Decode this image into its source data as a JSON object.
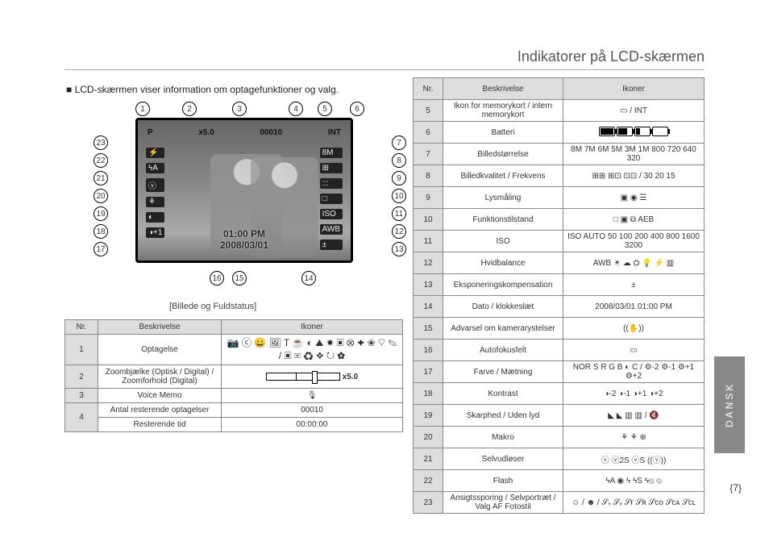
{
  "title": "Indikatorer på LCD-skærmen",
  "subtitle": "LCD-skærmen viser information om optagefunktioner og valg.",
  "diagram_caption": "[Billede og Fuldstatus]",
  "side_tab": "DANSK",
  "page_num": "{7}",
  "callouts": [
    "1",
    "2",
    "3",
    "4",
    "5",
    "6",
    "7",
    "8",
    "9",
    "10",
    "11",
    "12",
    "13",
    "14",
    "15",
    "16",
    "17",
    "18",
    "19",
    "20",
    "21",
    "22",
    "23"
  ],
  "lcd": {
    "top_left_mode": "P",
    "zoom_label": "x5.0",
    "counter": "00010",
    "card": "INT",
    "right_icons": [
      "8M",
      "⊞",
      ":::",
      "□",
      "ISO",
      "AWB",
      "±"
    ],
    "left_icons": [
      "⚡",
      "ϟA",
      "ⓥ",
      "⚘",
      "◐",
      "◑+1"
    ],
    "time": "01:00 PM",
    "date": "2008/03/01"
  },
  "left_table": {
    "headers": {
      "nr": "Nr.",
      "desc": "Beskrivelse",
      "icons": "Ikoner"
    },
    "rows": [
      {
        "nr": "1",
        "desc": "Optagelse",
        "icons": "📷 ⓒ 😀 🖼 T ☕ ◐ ⛰ ☀ ▣ ⭙ ✦ ❀ ♡ ✎ / ▣ ✉ ♻ ❖ ↻ ✿"
      },
      {
        "nr": "2",
        "desc": "Zoombjælke (Optisk / Digital) / Zoomforhold (Digital)",
        "icons": "__ZOOM__"
      },
      {
        "nr": "3",
        "desc": "Voice Memo",
        "icons": "🎙"
      },
      {
        "nr": "4a",
        "desc": "Antal resterende optagelser",
        "icons": "00010"
      },
      {
        "nr": "4b",
        "desc": "Resterende tid",
        "icons": "00:00:00"
      }
    ]
  },
  "right_table": {
    "headers": {
      "nr": "Nr.",
      "desc": "Beskrivelse",
      "icons": "Ikoner"
    },
    "rows": [
      {
        "nr": "5",
        "desc": "Ikon for memorykort / intern memorykort",
        "icons": "▭ / INT"
      },
      {
        "nr": "6",
        "desc": "Batteri",
        "icons": "__BATTERY__"
      },
      {
        "nr": "7",
        "desc": "Billedstørrelse",
        "icons": "8M 7M 6M 5M 3M 1M 800 720 640 320"
      },
      {
        "nr": "8",
        "desc": "Billedkvalitet / Frekvens",
        "icons": "⊞⊞ ⊞⊡ ⊡⊡ / 30 20 15"
      },
      {
        "nr": "9",
        "desc": "Lysmåling",
        "icons": "▣  ◉  ☰"
      },
      {
        "nr": "10",
        "desc": "Funktionstilstand",
        "icons": "□  ▣  ⧉  AEB"
      },
      {
        "nr": "11",
        "desc": "ISO",
        "icons": "ISO AUTO 50 100 200 400 800 1600 3200"
      },
      {
        "nr": "12",
        "desc": "Hvidbalance",
        "icons": "AWB ☀ ☁ ⛭ 💡 ⚡ ▥"
      },
      {
        "nr": "13",
        "desc": "Eksponeringskompensation",
        "icons": "±"
      },
      {
        "nr": "14",
        "desc": "Dato / klokkeslæt",
        "icons": "2008/03/01  01:00 PM"
      },
      {
        "nr": "15",
        "desc": "Advarsel om kamerarystelser",
        "icons": "((✋))"
      },
      {
        "nr": "16",
        "desc": "Autofokusfelt",
        "icons": "▭"
      },
      {
        "nr": "17",
        "desc": "Farve / Mætning",
        "icons": "NOR S R G B ◐ C / ⚙-2 ⚙-1 ⚙+1 ⚙+2"
      },
      {
        "nr": "18",
        "desc": "Kontrast",
        "icons": "◑-2 ◑-1 ◑+1 ◑+2"
      },
      {
        "nr": "19",
        "desc": "Skarphed / Uden lyd",
        "icons": "◣ ◣ ▥ ▥ / 🔇"
      },
      {
        "nr": "20",
        "desc": "Makro",
        "icons": "⚘ ⚘ ⊕"
      },
      {
        "nr": "21",
        "desc": "Selvudløser",
        "icons": "ⓥ ⓥ2S ⓥS ((ⓥ))"
      },
      {
        "nr": "22",
        "desc": "Flash",
        "icons": "ϟA ◉ ϟ ϟS ϟ⦸ ⦸"
      },
      {
        "nr": "23",
        "desc": "Ansigtssporing / Selvportræt / Valg AF Fotostil",
        "icons": "☺ / ☻ / 𝒮ₛ 𝒮ᵥ 𝒮ғ 𝒮ʀ 𝒮ᴄᴏ 𝒮ᴄᴀ 𝒮ᴄʟ"
      }
    ]
  }
}
